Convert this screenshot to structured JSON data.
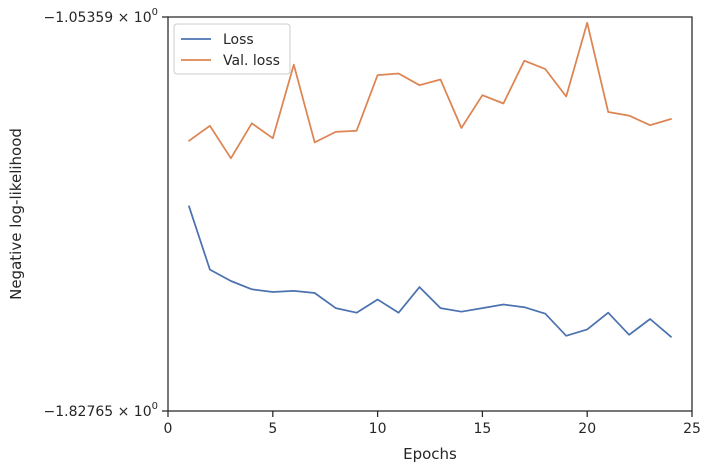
{
  "chart_data": {
    "type": "line",
    "xlabel": "Epochs",
    "ylabel": "Negative log-likelihood",
    "xlim": [
      0,
      25
    ],
    "x_ticks": [
      0,
      5,
      10,
      15,
      20,
      25
    ],
    "ylim": [
      -1.82765,
      -1.05359
    ],
    "y_ticks": [
      -1.82765,
      -1.05359
    ],
    "y_tick_labels": [
      "−1.82765 × 10",
      "−1.05359 × 10"
    ],
    "y_tick_exponent": "0",
    "grid": false,
    "legend_position": "top-left",
    "x": [
      1,
      2,
      3,
      4,
      5,
      6,
      7,
      8,
      9,
      10,
      11,
      12,
      13,
      14,
      15,
      16,
      17,
      18,
      19,
      20,
      21,
      22,
      23,
      24
    ],
    "series": [
      {
        "name": "Loss",
        "color": "#4c72b0",
        "values": [
          -1.4254,
          -1.5498,
          -1.5723,
          -1.5886,
          -1.5938,
          -1.5917,
          -1.5958,
          -1.6254,
          -1.6345,
          -1.6086,
          -1.6345,
          -1.5842,
          -1.6254,
          -1.6325,
          -1.6254,
          -1.6184,
          -1.6237,
          -1.6365,
          -1.6799,
          -1.6674,
          -1.6345,
          -1.6779,
          -1.6469,
          -1.6819
        ]
      },
      {
        "name": "Val. loss",
        "color": "#dd8452",
        "values": [
          -1.2969,
          -1.2673,
          -1.3311,
          -1.2625,
          -1.2917,
          -1.1474,
          -1.2999,
          -1.2793,
          -1.2769,
          -1.1678,
          -1.1646,
          -1.1876,
          -1.1763,
          -1.2716,
          -1.2073,
          -1.2236,
          -1.1394,
          -1.156,
          -1.2097,
          -1.0649,
          -1.2402,
          -1.2473,
          -1.2661,
          -1.2539
        ]
      }
    ]
  }
}
